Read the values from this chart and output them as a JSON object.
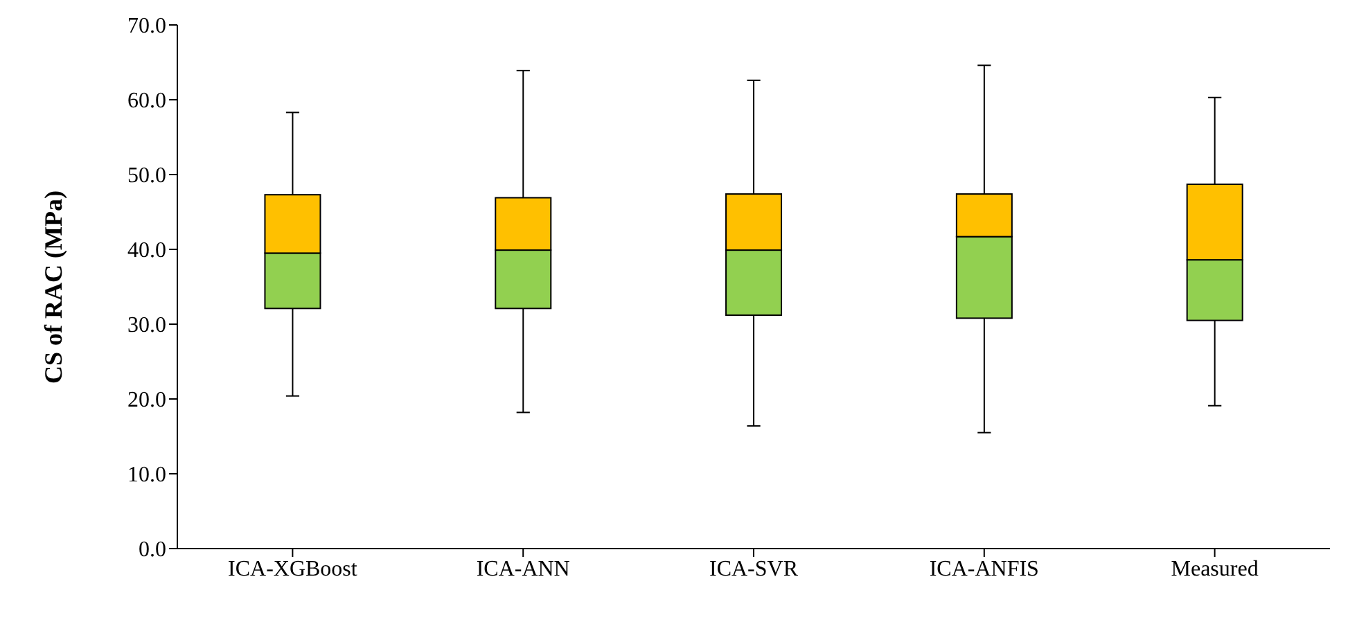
{
  "chart_data": {
    "type": "box",
    "ylabel": "CS of RAC (MPa)",
    "categories": [
      "ICA-XGBoost",
      "ICA-ANN",
      "ICA-SVR",
      "ICA-ANFIS",
      "Measured"
    ],
    "boxes": [
      {
        "low": 20.4,
        "q1": 32.1,
        "median": 39.5,
        "q3": 47.3,
        "high": 58.3
      },
      {
        "low": 18.2,
        "q1": 32.1,
        "median": 39.9,
        "q3": 46.9,
        "high": 63.9
      },
      {
        "low": 16.4,
        "q1": 31.2,
        "median": 39.9,
        "q3": 47.4,
        "high": 62.6
      },
      {
        "low": 15.5,
        "q1": 30.8,
        "median": 41.7,
        "q3": 47.4,
        "high": 64.6
      },
      {
        "low": 19.1,
        "q1": 30.5,
        "median": 38.6,
        "q3": 48.7,
        "high": 60.3
      }
    ],
    "colors": [
      [
        "#92d050",
        "#ffc000"
      ],
      [
        "#92d050",
        "#ffc000"
      ],
      [
        "#92d050",
        "#ffc000"
      ],
      [
        "#92d050",
        "#ffc000"
      ],
      [
        "#92d050",
        "#ffc000"
      ]
    ],
    "ylim": [
      0,
      70
    ],
    "yticks": [
      {
        "value": 0,
        "label": "0.0"
      },
      {
        "value": 10,
        "label": "10.0"
      },
      {
        "value": 20,
        "label": "20.0"
      },
      {
        "value": 30,
        "label": "30.0"
      },
      {
        "value": 40,
        "label": "40.0"
      },
      {
        "value": 50,
        "label": "50.0"
      },
      {
        "value": 60,
        "label": "60.0"
      },
      {
        "value": 70,
        "label": "70.0"
      }
    ],
    "grid": false
  }
}
